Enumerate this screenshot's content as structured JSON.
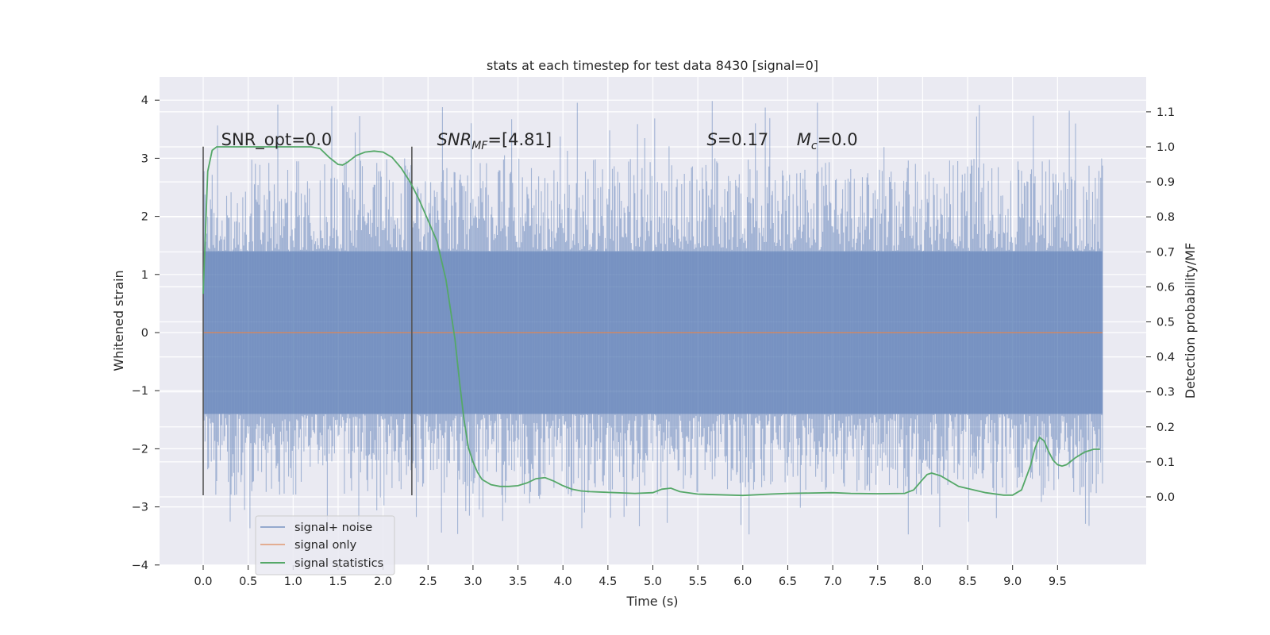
{
  "chart_data": {
    "type": "line",
    "title": "stats at each timestep for test data 8430 [signal=0]",
    "xlabel": "Time (s)",
    "ylabel": "Whitened strain",
    "y2label": "Detection probability/MF",
    "xlim": [
      -0.48,
      10.5
    ],
    "ylim": [
      -4.2,
      4.4
    ],
    "y2lim": [
      -0.18,
      1.16
    ],
    "x_ticks": [
      0.0,
      0.5,
      1.0,
      1.5,
      2.0,
      2.5,
      3.0,
      3.5,
      4.0,
      4.5,
      5.0,
      5.5,
      6.0,
      6.5,
      7.0,
      7.5,
      8.0,
      8.5,
      9.0,
      9.5
    ],
    "x_tick_labels": [
      "0.0",
      "0.5",
      "1.0",
      "1.5",
      "2.0",
      "2.5",
      "3.0",
      "3.5",
      "4.0",
      "4.5",
      "5.0",
      "5.5",
      "6.0",
      "6.5",
      "7.0",
      "7.5",
      "8.0",
      "8.5",
      "9.0",
      "9.5"
    ],
    "y_ticks": [
      4,
      3,
      2,
      1,
      0,
      -1,
      -2,
      -3,
      -4
    ],
    "y_tick_labels": [
      "4",
      "3",
      "2",
      "1",
      "0",
      "−1",
      "−2",
      "−3",
      "−4"
    ],
    "y2_ticks": [
      1.1,
      1.0,
      0.9,
      0.8,
      0.7,
      0.6,
      0.5,
      0.4,
      0.3,
      0.2,
      0.1,
      0.0
    ],
    "y2_tick_labels": [
      "1.1",
      "1.0",
      "0.9",
      "0.8",
      "0.7",
      "0.6",
      "0.5",
      "0.4",
      "0.3",
      "0.2",
      "0.1",
      "0.0"
    ],
    "grid": true,
    "legend_position": "lower-left",
    "colors": {
      "signal_noise": "#4c72b0",
      "signal_only": "#dd8452",
      "signal_statistics": "#55a868",
      "axes_bg": "#eaeaf2",
      "grid": "#ffffff",
      "marker_lines": "#555555"
    },
    "annotations": [
      {
        "text": "SNR_opt=0.0",
        "x": 0.2,
        "y2": 1.0
      },
      {
        "text": "SNR_MF=[4.81]",
        "x": 2.6,
        "y2": 1.0
      },
      {
        "text": "S=0.17",
        "x": 5.6,
        "y2": 1.0
      },
      {
        "text": "M_c=0.0",
        "x": 6.6,
        "y2": 1.0
      }
    ],
    "vertical_markers": [
      {
        "x": 0.0,
        "y_from": -2.8,
        "y_to": 3.2
      },
      {
        "x": 2.32,
        "y_from": -2.8,
        "y_to": 3.2
      }
    ],
    "series": [
      {
        "name": "signal+ noise",
        "x_range": [
          0.0,
          10.0
        ],
        "band_low": [
          -2.2,
          -3.4
        ],
        "band_high": [
          2.3,
          4.05
        ],
        "description_level": "noise"
      },
      {
        "name": "signal only",
        "x": [
          0.0,
          10.0
        ],
        "y": [
          0.0,
          0.0
        ]
      },
      {
        "name": "signal statistics",
        "axis": "y2",
        "x": [
          0.0,
          0.05,
          0.1,
          0.15,
          0.2,
          0.3,
          0.5,
          0.8,
          1.0,
          1.2,
          1.3,
          1.4,
          1.5,
          1.55,
          1.6,
          1.7,
          1.8,
          1.9,
          2.0,
          2.1,
          2.2,
          2.3,
          2.4,
          2.5,
          2.6,
          2.7,
          2.8,
          2.85,
          2.9,
          2.95,
          3.0,
          3.05,
          3.1,
          3.2,
          3.3,
          3.4,
          3.5,
          3.6,
          3.7,
          3.8,
          3.9,
          4.0,
          4.1,
          4.2,
          4.3,
          4.5,
          4.8,
          5.0,
          5.1,
          5.2,
          5.3,
          5.5,
          6.0,
          6.3,
          6.5,
          7.0,
          7.2,
          7.5,
          7.8,
          7.9,
          8.0,
          8.05,
          8.1,
          8.2,
          8.4,
          8.7,
          8.9,
          9.0,
          9.1,
          9.2,
          9.25,
          9.3,
          9.35,
          9.4,
          9.45,
          9.5,
          9.55,
          9.6,
          9.65,
          9.7,
          9.8,
          9.9,
          9.97
        ],
        "y": [
          0.58,
          0.93,
          0.99,
          1.0,
          1.0,
          1.0,
          1.0,
          1.0,
          1.0,
          1.0,
          0.995,
          0.97,
          0.95,
          0.948,
          0.955,
          0.975,
          0.985,
          0.988,
          0.985,
          0.97,
          0.94,
          0.9,
          0.85,
          0.79,
          0.73,
          0.62,
          0.45,
          0.33,
          0.22,
          0.14,
          0.1,
          0.07,
          0.05,
          0.035,
          0.03,
          0.03,
          0.032,
          0.04,
          0.052,
          0.055,
          0.045,
          0.032,
          0.022,
          0.017,
          0.015,
          0.013,
          0.01,
          0.012,
          0.022,
          0.025,
          0.015,
          0.008,
          0.004,
          0.008,
          0.01,
          0.012,
          0.01,
          0.009,
          0.01,
          0.02,
          0.05,
          0.064,
          0.068,
          0.06,
          0.03,
          0.012,
          0.005,
          0.005,
          0.02,
          0.09,
          0.14,
          0.17,
          0.16,
          0.13,
          0.105,
          0.092,
          0.088,
          0.092,
          0.102,
          0.112,
          0.128,
          0.136,
          0.136
        ]
      }
    ]
  }
}
